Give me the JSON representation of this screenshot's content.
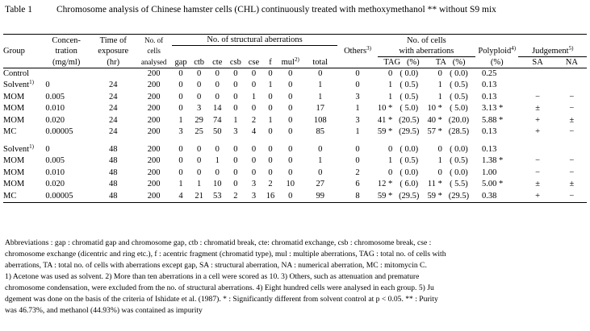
{
  "caption": {
    "label": "Table 1",
    "title": "Chromosome analysis of Chinese hamster cells (CHL) continuously treated with methoxymethanol ** without S9 mix"
  },
  "headers": {
    "group": "Group",
    "conc": [
      "Concen-",
      "tration",
      "(mg/ml)"
    ],
    "time": [
      "Time of",
      "exposure",
      "(hr)"
    ],
    "cells": [
      "No. of",
      "cells",
      "analysed"
    ],
    "structural": "No. of structural aberrations",
    "struct_cols": [
      "gap",
      "ctb",
      "cte",
      "csb",
      "cse",
      "f",
      "mul",
      "total"
    ],
    "mul_sup": "2)",
    "others": "Others",
    "others_sup": "3)",
    "with_ab": [
      "No. of cells",
      "with aberrations"
    ],
    "tag": "TAG",
    "ta": "TA",
    "pct": "(%)",
    "polyploid": "Polyploid",
    "polyploid_sup": "4)",
    "polyploid_pct": "(%)",
    "judgement": "Judgement",
    "judgement_sup": "5)",
    "sa": "SA",
    "na": "NA"
  },
  "rows_24": [
    {
      "group": "Control",
      "sup": "",
      "conc": "",
      "time": "",
      "cells": "200",
      "gap": "0",
      "ctb": "0",
      "cte": "0",
      "csb": "0",
      "cse": "0",
      "f": "0",
      "mul": "0",
      "total": "0",
      "others": "0",
      "tag": "0",
      "tag_pct": "( 0.0)",
      "ta": "0",
      "ta_pct": "( 0.0)",
      "poly": "0.25",
      "sa": "",
      "na": ""
    },
    {
      "group": "Solvent",
      "sup": "1)",
      "conc": "0",
      "time": "24",
      "cells": "200",
      "gap": "0",
      "ctb": "0",
      "cte": "0",
      "csb": "0",
      "cse": "0",
      "f": "1",
      "mul": "0",
      "total": "1",
      "others": "0",
      "tag": "1",
      "tag_pct": "( 0.5)",
      "ta": "1",
      "ta_pct": "( 0.5)",
      "poly": "0.13",
      "sa": "",
      "na": ""
    },
    {
      "group": "MOM",
      "sup": "",
      "conc": "0.005",
      "time": "24",
      "cells": "200",
      "gap": "0",
      "ctb": "0",
      "cte": "0",
      "csb": "0",
      "cse": "1",
      "f": "0",
      "mul": "0",
      "total": "1",
      "others": "3",
      "tag": "1",
      "tag_pct": "( 0.5)",
      "ta": "1",
      "ta_pct": "( 0.5)",
      "poly": "0.13",
      "sa": "−",
      "na": "−"
    },
    {
      "group": "MOM",
      "sup": "",
      "conc": "0.010",
      "time": "24",
      "cells": "200",
      "gap": "0",
      "ctb": "3",
      "cte": "14",
      "csb": "0",
      "cse": "0",
      "f": "0",
      "mul": "0",
      "total": "17",
      "others": "1",
      "tag": "10 *",
      "tag_pct": "( 5.0)",
      "ta": "10 *",
      "ta_pct": "( 5.0)",
      "poly": "3.13 *",
      "sa": "±",
      "na": "−"
    },
    {
      "group": "MOM",
      "sup": "",
      "conc": "0.020",
      "time": "24",
      "cells": "200",
      "gap": "1",
      "ctb": "29",
      "cte": "74",
      "csb": "1",
      "cse": "2",
      "f": "1",
      "mul": "0",
      "total": "108",
      "others": "3",
      "tag": "41 *",
      "tag_pct": "(20.5)",
      "ta": "40 *",
      "ta_pct": "(20.0)",
      "poly": "5.88 *",
      "sa": "+",
      "na": "±"
    },
    {
      "group": "MC",
      "sup": "",
      "conc": "0.00005",
      "time": "24",
      "cells": "200",
      "gap": "3",
      "ctb": "25",
      "cte": "50",
      "csb": "3",
      "cse": "4",
      "f": "0",
      "mul": "0",
      "total": "85",
      "others": "1",
      "tag": "59 *",
      "tag_pct": "(29.5)",
      "ta": "57 *",
      "ta_pct": "(28.5)",
      "poly": "0.13",
      "sa": "+",
      "na": "−"
    }
  ],
  "rows_48": [
    {
      "group": "Solvent",
      "sup": "1)",
      "conc": "0",
      "time": "48",
      "cells": "200",
      "gap": "0",
      "ctb": "0",
      "cte": "0",
      "csb": "0",
      "cse": "0",
      "f": "0",
      "mul": "0",
      "total": "0",
      "others": "0",
      "tag": "0",
      "tag_pct": "( 0.0)",
      "ta": "0",
      "ta_pct": "( 0.0)",
      "poly": "0.13",
      "sa": "",
      "na": ""
    },
    {
      "group": "MOM",
      "sup": "",
      "conc": "0.005",
      "time": "48",
      "cells": "200",
      "gap": "0",
      "ctb": "0",
      "cte": "1",
      "csb": "0",
      "cse": "0",
      "f": "0",
      "mul": "0",
      "total": "1",
      "others": "0",
      "tag": "1",
      "tag_pct": "( 0.5)",
      "ta": "1",
      "ta_pct": "( 0.5)",
      "poly": "1.38 *",
      "sa": "−",
      "na": "−"
    },
    {
      "group": "MOM",
      "sup": "",
      "conc": "0.010",
      "time": "48",
      "cells": "200",
      "gap": "0",
      "ctb": "0",
      "cte": "0",
      "csb": "0",
      "cse": "0",
      "f": "0",
      "mul": "0",
      "total": "0",
      "others": "2",
      "tag": "0",
      "tag_pct": "( 0.0)",
      "ta": "0",
      "ta_pct": "( 0.0)",
      "poly": "1.00",
      "sa": "−",
      "na": "−"
    },
    {
      "group": "MOM",
      "sup": "",
      "conc": "0.020",
      "time": "48",
      "cells": "200",
      "gap": "1",
      "ctb": "1",
      "cte": "10",
      "csb": "0",
      "cse": "3",
      "f": "2",
      "mul": "10",
      "total": "27",
      "others": "6",
      "tag": "12 *",
      "tag_pct": "( 6.0)",
      "ta": "11 *",
      "ta_pct": "( 5.5)",
      "poly": "5.00 *",
      "sa": "±",
      "na": "±"
    },
    {
      "group": "MC",
      "sup": "",
      "conc": "0.00005",
      "time": "48",
      "cells": "200",
      "gap": "4",
      "ctb": "21",
      "cte": "53",
      "csb": "2",
      "cse": "3",
      "f": "16",
      "mul": "0",
      "total": "99",
      "others": "8",
      "tag": "59 *",
      "tag_pct": "(29.5)",
      "ta": "59 *",
      "ta_pct": "(29.5)",
      "poly": "0.38",
      "sa": "+",
      "na": "−"
    }
  ],
  "notes": [
    "Abbreviations : gap : chromatid gap and chromosome gap, ctb : chromatid break, cte: chromatid exchange, csb : chromosome break, cse :",
    "chromosome exchange (dicentric and ring etc.), f : acentric fragment (chromatid type), mul : multiple aberrations, TAG : total no. of cells with",
    "aberrations, TA : total no. of cells with aberrations except gap, SA : structural aberration, NA : numerical aberration, MC : mitomycin C.",
    "1) Acetone was used as solvent.   2) More than ten aberrations in a cell were scored as 10.   3) Others, such as attenuation and premature",
    " chromosome condensation, were excluded from the no. of structural aberrations.   4) Eight hundred cells were analysed in each group.   5) Ju",
    "dgement was done on the basis of the criteria of Ishidate et al. (1987).   * : Significantly different from solvent control at p < 0.05.   ** : Purity",
    "was 46.73%, and methanol (44.93%) was contained as impurity"
  ]
}
